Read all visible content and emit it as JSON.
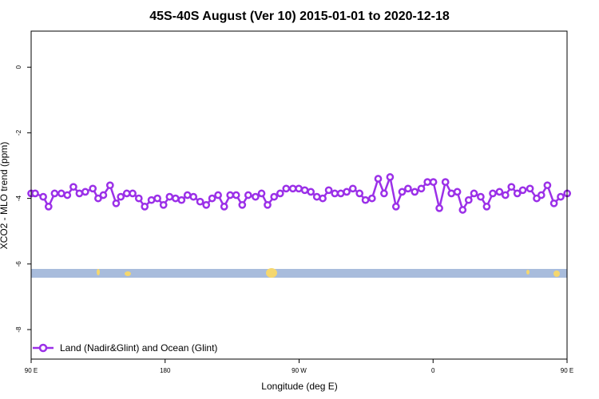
{
  "chart_data": {
    "type": "line",
    "title": "45S-40S August (Ver 10)   2015-01-01 to 2020-12-18",
    "xlabel": "Longitude (deg E)",
    "ylabel": "XCO2 - MLO trend (ppm)",
    "xlim": [
      90,
      450
    ],
    "ylim": [
      -8.9,
      1.1
    ],
    "x_ticks": [
      {
        "value": 90,
        "label": "90 E"
      },
      {
        "value": 180,
        "label": "180"
      },
      {
        "value": 270,
        "label": "90 W"
      },
      {
        "value": 360,
        "label": "0"
      },
      {
        "value": 450,
        "label": "90 E"
      },
      {
        "value": 540,
        "label": "180"
      }
    ],
    "y_ticks": [
      {
        "value": 0,
        "label": "0"
      },
      {
        "value": -2,
        "label": "-2"
      },
      {
        "value": -4,
        "label": "-4"
      },
      {
        "value": -6,
        "label": "-6"
      },
      {
        "value": -8,
        "label": "-8"
      }
    ],
    "legend_position": "bottom-left",
    "grid": false,
    "series": [
      {
        "name": "Land (Nadir&Glint) and Ocean (Glint)",
        "color": "#9b30e8",
        "x": [
          90,
          92.7,
          98.1,
          101.7,
          105.8,
          110.3,
          114.3,
          118.4,
          122.4,
          126.4,
          131.4,
          135.0,
          138.5,
          143.0,
          147.1,
          150.2,
          154.2,
          158.2,
          162.3,
          166.3,
          170.8,
          174.8,
          178.9,
          183.0,
          187.0,
          191.0,
          195.0,
          199.0,
          203.5,
          207.6,
          211.6,
          215.6,
          219.7,
          223.7,
          227.7,
          231.8,
          235.8,
          240.7,
          244.8,
          248.8,
          253.2,
          257.3,
          261.3,
          265.8,
          269.8,
          273.8,
          277.9,
          281.9,
          285.9,
          289.9,
          294.0,
          298.0,
          302.0,
          306.1,
          310.6,
          314.6,
          319.0,
          323.1,
          327.1,
          331.1,
          335.1,
          339.2,
          343.2,
          347.7,
          352.1,
          356.2,
          360.2,
          364.2,
          368.3,
          372.3,
          376.3,
          379.9,
          383.9,
          387.5,
          392.0,
          396.0,
          400.1,
          404.6,
          408.6,
          412.6,
          416.6,
          420.3,
          425.1,
          429.6,
          432.7,
          436.8,
          441.2,
          445.7,
          450.1
        ],
        "y": [
          -3.85,
          -3.85,
          -3.95,
          -4.25,
          -3.85,
          -3.85,
          -3.9,
          -3.65,
          -3.85,
          -3.8,
          -3.7,
          -4.0,
          -3.9,
          -3.6,
          -4.15,
          -3.95,
          -3.85,
          -3.85,
          -4.0,
          -4.25,
          -4.05,
          -4.0,
          -4.2,
          -3.95,
          -4.0,
          -4.05,
          -3.9,
          -3.95,
          -4.1,
          -4.2,
          -4.0,
          -3.9,
          -4.25,
          -3.9,
          -3.9,
          -4.2,
          -3.9,
          -3.95,
          -3.85,
          -4.2,
          -3.95,
          -3.85,
          -3.7,
          -3.7,
          -3.7,
          -3.75,
          -3.8,
          -3.95,
          -4.0,
          -3.75,
          -3.85,
          -3.85,
          -3.8,
          -3.7,
          -3.85,
          -4.05,
          -4.0,
          -3.4,
          -3.85,
          -3.35,
          -4.25,
          -3.8,
          -3.7,
          -3.8,
          -3.7,
          -3.5,
          -3.5,
          -4.3,
          -3.5,
          -3.85,
          -3.8,
          -4.35,
          -4.05,
          -3.85,
          -3.95,
          -4.25,
          -3.85,
          -3.8,
          -3.9,
          -3.65,
          -3.85,
          -3.75,
          -3.7,
          -4.0,
          -3.9,
          -3.6,
          -4.15,
          -3.95,
          -3.85
        ]
      }
    ]
  },
  "map_strip": {
    "ocean_color": "#a8bcdc",
    "land_color": "#f5d76e"
  }
}
